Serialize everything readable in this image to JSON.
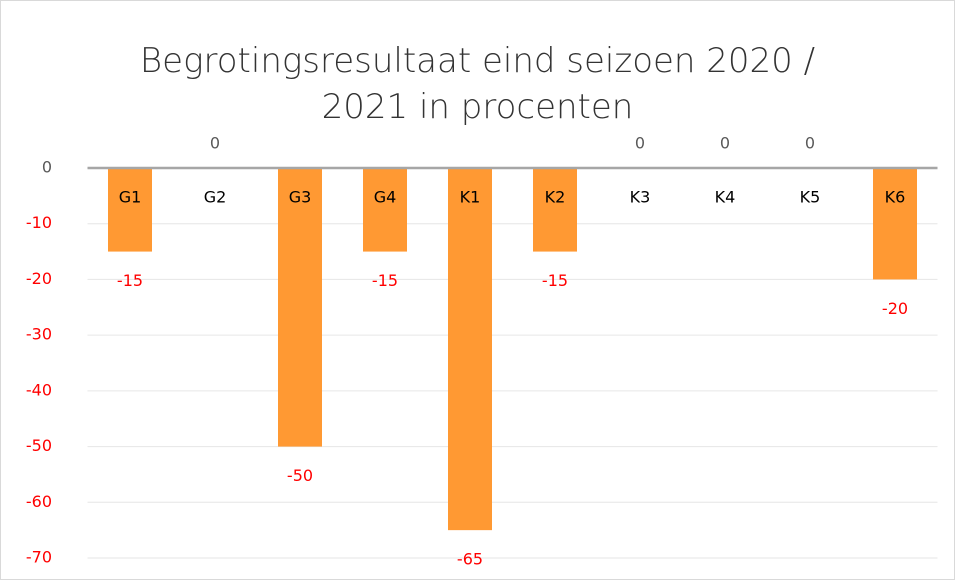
{
  "chart_data": {
    "type": "bar",
    "title": "Begrotingsresultaat eind seizoen 2020 / 2021 in procenten",
    "categories": [
      "G1",
      "G2",
      "G3",
      "G4",
      "K1",
      "K2",
      "K3",
      "K4",
      "K5",
      "K6"
    ],
    "values": [
      -15,
      0,
      -50,
      -15,
      -65,
      -15,
      0,
      0,
      0,
      -20
    ],
    "color": "#ff9933",
    "negative_label_color": "#ff0000",
    "ylim": [
      -70,
      0
    ],
    "yticks": [
      0,
      -10,
      -20,
      -30,
      -40,
      -50,
      -60,
      -70
    ],
    "grid": true
  }
}
